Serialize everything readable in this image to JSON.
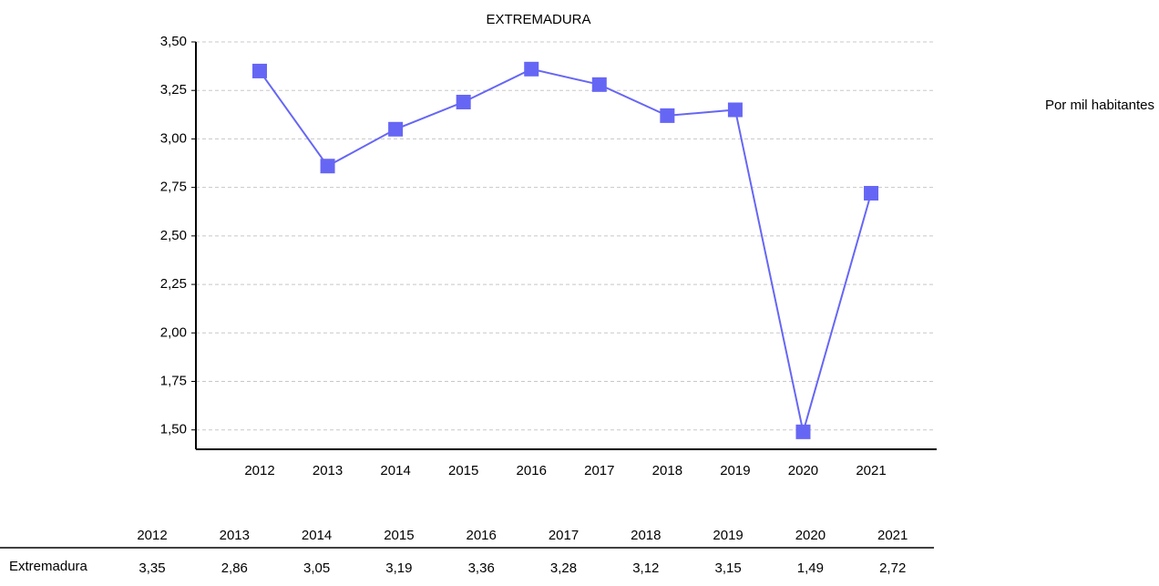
{
  "chart_data": {
    "type": "line",
    "title": "EXTREMADURA",
    "annotation": "Por mil habitantes",
    "categories": [
      "2012",
      "2013",
      "2014",
      "2015",
      "2016",
      "2017",
      "2018",
      "2019",
      "2020",
      "2021"
    ],
    "series": [
      {
        "name": "Extremadura",
        "color": "#6666f5",
        "values": [
          3.35,
          2.86,
          3.05,
          3.19,
          3.36,
          3.28,
          3.12,
          3.15,
          1.49,
          2.72
        ],
        "value_labels": [
          "3,35",
          "2,86",
          "3,05",
          "3,19",
          "3,36",
          "3,28",
          "3,12",
          "3,15",
          "1,49",
          "2,72"
        ]
      }
    ],
    "ylim": [
      1.4,
      3.5
    ],
    "yticks": [
      {
        "value": 1.5,
        "label": "1,50"
      },
      {
        "value": 1.75,
        "label": "1,75"
      },
      {
        "value": 2.0,
        "label": "2,00"
      },
      {
        "value": 2.25,
        "label": "2,25"
      },
      {
        "value": 2.5,
        "label": "2,50"
      },
      {
        "value": 2.75,
        "label": "2,75"
      },
      {
        "value": 3.0,
        "label": "3,00"
      },
      {
        "value": 3.25,
        "label": "3,25"
      },
      {
        "value": 3.5,
        "label": "3,50"
      }
    ],
    "grid": true
  }
}
